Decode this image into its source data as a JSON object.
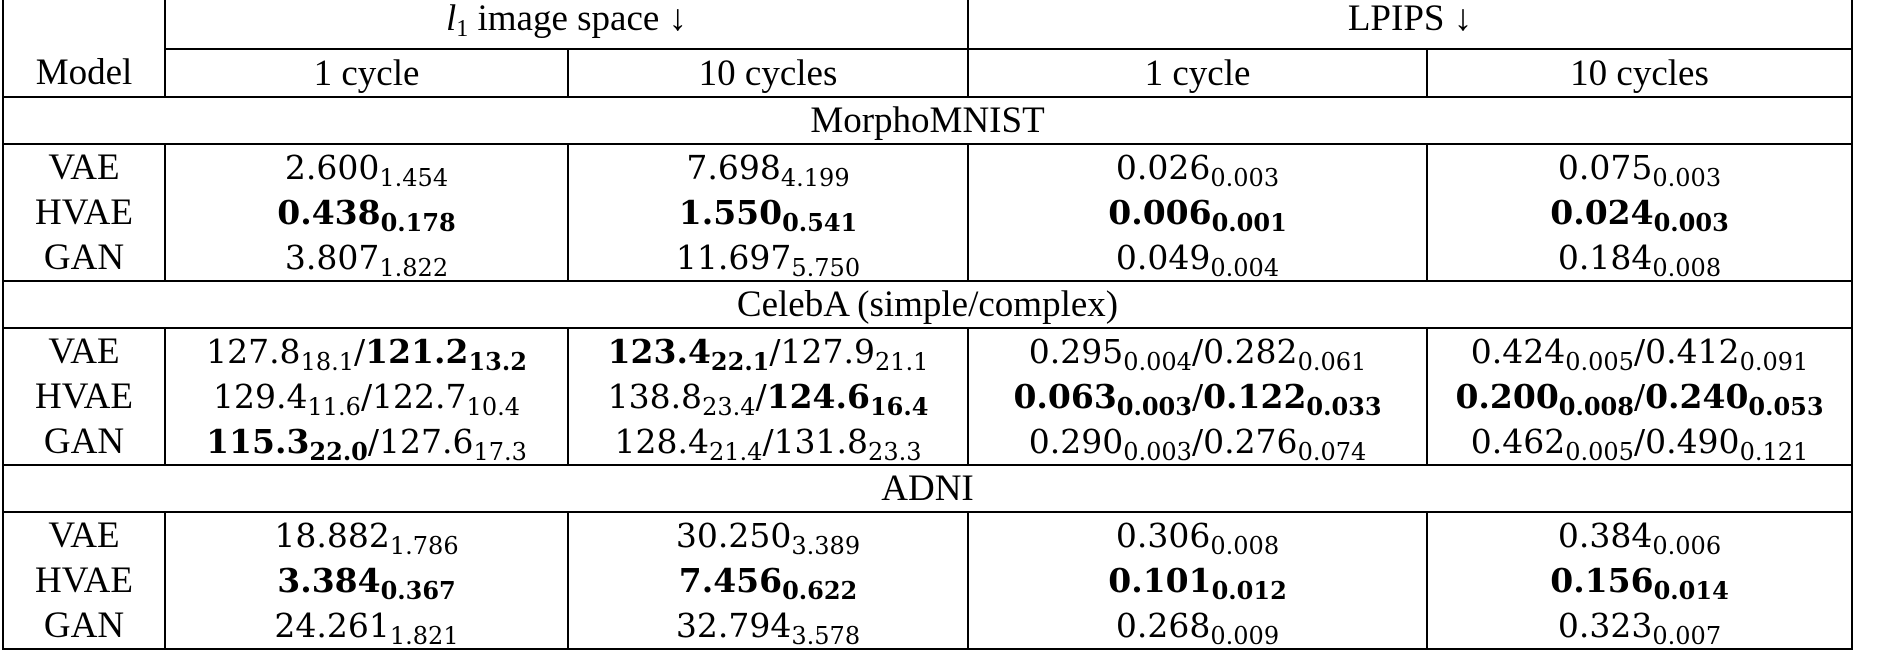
{
  "headers": {
    "model": "Model",
    "group_l1": {
      "var": "l",
      "sub": "1",
      "label": " image space ↓"
    },
    "group_lpips": "LPIPS ↓",
    "cols": [
      "1 cycle",
      "10 cycles",
      "1 cycle",
      "10 cycles"
    ]
  },
  "sections": [
    {
      "title": "MorphoMNIST",
      "rows": [
        {
          "model": "VAE",
          "cells": [
            [
              {
                "v": "2.600",
                "s": "1.454",
                "b": false
              }
            ],
            [
              {
                "v": "7.698",
                "s": "4.199",
                "b": false
              }
            ],
            [
              {
                "v": "0.026",
                "s": "0.003",
                "b": false
              }
            ],
            [
              {
                "v": "0.075",
                "s": "0.003",
                "b": false
              }
            ]
          ]
        },
        {
          "model": "HVAE",
          "cells": [
            [
              {
                "v": "0.438",
                "s": "0.178",
                "b": true
              }
            ],
            [
              {
                "v": "1.550",
                "s": "0.541",
                "b": true
              }
            ],
            [
              {
                "v": "0.006",
                "s": "0.001",
                "b": true
              }
            ],
            [
              {
                "v": "0.024",
                "s": "0.003",
                "b": true
              }
            ]
          ]
        },
        {
          "model": "GAN",
          "cells": [
            [
              {
                "v": "3.807",
                "s": "1.822",
                "b": false
              }
            ],
            [
              {
                "v": "11.697",
                "s": "5.750",
                "b": false
              }
            ],
            [
              {
                "v": "0.049",
                "s": "0.004",
                "b": false
              }
            ],
            [
              {
                "v": "0.184",
                "s": "0.008",
                "b": false
              }
            ]
          ]
        }
      ]
    },
    {
      "title": "CelebA (simple/complex)",
      "rows": [
        {
          "model": "VAE",
          "cells": [
            [
              {
                "v": "127.8",
                "s": "18.1",
                "b": false
              },
              {
                "v": "121.2",
                "s": "13.2",
                "b": true
              }
            ],
            [
              {
                "v": "123.4",
                "s": "22.1",
                "b": true
              },
              {
                "v": "127.9",
                "s": "21.1",
                "b": false
              }
            ],
            [
              {
                "v": "0.295",
                "s": "0.004",
                "b": false
              },
              {
                "v": "0.282",
                "s": "0.061",
                "b": false
              }
            ],
            [
              {
                "v": "0.424",
                "s": "0.005",
                "b": false
              },
              {
                "v": "0.412",
                "s": "0.091",
                "b": false
              }
            ]
          ]
        },
        {
          "model": "HVAE",
          "cells": [
            [
              {
                "v": "129.4",
                "s": "11.6",
                "b": false
              },
              {
                "v": "122.7",
                "s": "10.4",
                "b": false
              }
            ],
            [
              {
                "v": "138.8",
                "s": "23.4",
                "b": false
              },
              {
                "v": "124.6",
                "s": "16.4",
                "b": true
              }
            ],
            [
              {
                "v": "0.063",
                "s": "0.003",
                "b": true
              },
              {
                "v": "0.122",
                "s": "0.033",
                "b": true
              }
            ],
            [
              {
                "v": "0.200",
                "s": "0.008",
                "b": true
              },
              {
                "v": "0.240",
                "s": "0.053",
                "b": true
              }
            ]
          ]
        },
        {
          "model": "GAN",
          "cells": [
            [
              {
                "v": "115.3",
                "s": "22.0",
                "b": true
              },
              {
                "v": "127.6",
                "s": "17.3",
                "b": false
              }
            ],
            [
              {
                "v": "128.4",
                "s": "21.4",
                "b": false
              },
              {
                "v": "131.8",
                "s": "23.3",
                "b": false
              }
            ],
            [
              {
                "v": "0.290",
                "s": "0.003",
                "b": false
              },
              {
                "v": "0.276",
                "s": "0.074",
                "b": false
              }
            ],
            [
              {
                "v": "0.462",
                "s": "0.005",
                "b": false
              },
              {
                "v": "0.490",
                "s": "0.121",
                "b": false
              }
            ]
          ]
        }
      ]
    },
    {
      "title": "ADNI",
      "rows": [
        {
          "model": "VAE",
          "cells": [
            [
              {
                "v": "18.882",
                "s": "1.786",
                "b": false
              }
            ],
            [
              {
                "v": "30.250",
                "s": "3.389",
                "b": false
              }
            ],
            [
              {
                "v": "0.306",
                "s": "0.008",
                "b": false
              }
            ],
            [
              {
                "v": "0.384",
                "s": "0.006",
                "b": false
              }
            ]
          ]
        },
        {
          "model": "HVAE",
          "cells": [
            [
              {
                "v": "3.384",
                "s": "0.367",
                "b": true
              }
            ],
            [
              {
                "v": "7.456",
                "s": "0.622",
                "b": true
              }
            ],
            [
              {
                "v": "0.101",
                "s": "0.012",
                "b": true
              }
            ],
            [
              {
                "v": "0.156",
                "s": "0.014",
                "b": true
              }
            ]
          ]
        },
        {
          "model": "GAN",
          "cells": [
            [
              {
                "v": "24.261",
                "s": "1.821",
                "b": false
              }
            ],
            [
              {
                "v": "32.794",
                "s": "3.578",
                "b": false
              }
            ],
            [
              {
                "v": "0.268",
                "s": "0.009",
                "b": false
              }
            ],
            [
              {
                "v": "0.323",
                "s": "0.007",
                "b": false
              }
            ]
          ]
        }
      ]
    }
  ]
}
